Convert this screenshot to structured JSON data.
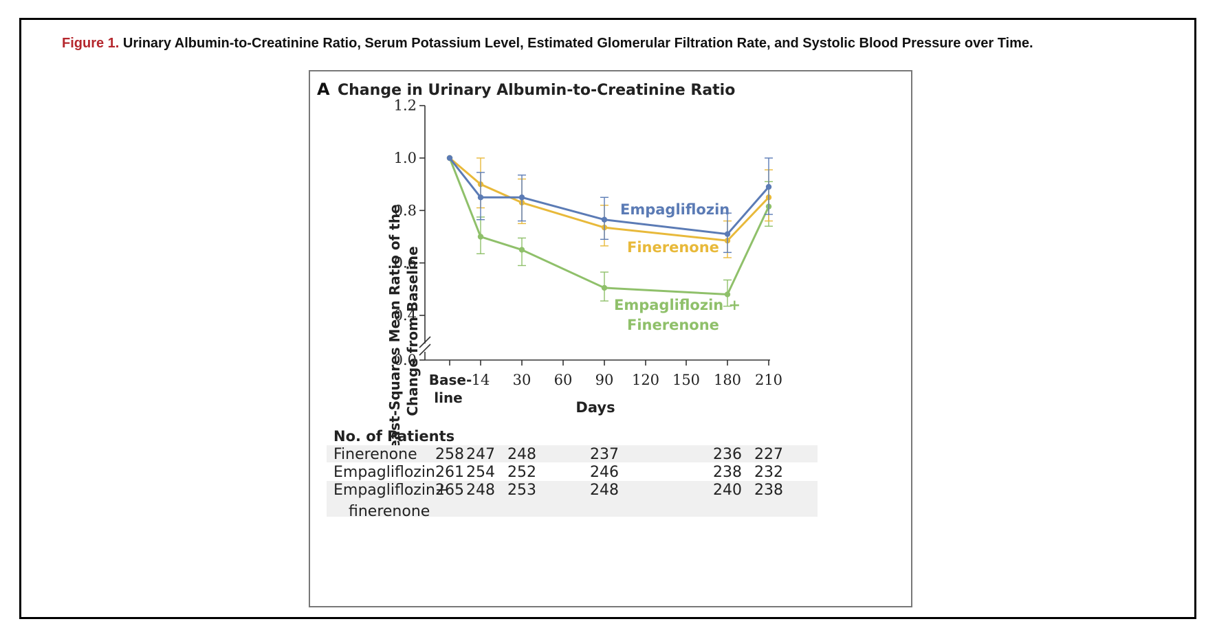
{
  "caption": {
    "label": "Figure 1.",
    "text": "Urinary Albumin-to-Creatinine Ratio, Serum Potassium Level, Estimated Glomerular Filtration Rate, and Systolic Blood Pressure over Time."
  },
  "panel": {
    "letter": "A",
    "title": "Change in Urinary Albumin-to-Creatinine Ratio"
  },
  "chart_data": {
    "type": "line",
    "title": "Change in Urinary Albumin-to-Creatinine Ratio",
    "ylabel_line1": "Least-Squares Mean Ratio of the",
    "ylabel_line2": "Change from Baseline",
    "xlabel": "Days",
    "y_ticks": [
      "0.0",
      "0.4",
      "0.6",
      "0.8",
      "1.0",
      "1.2"
    ],
    "y_tick_values": [
      0.0,
      0.4,
      0.6,
      0.8,
      1.0,
      1.2
    ],
    "y_axis_break": true,
    "x_ticks": [
      {
        "label": "Base-",
        "label2": "line",
        "value": 0,
        "bold": true
      },
      {
        "label": "14",
        "value": 14
      },
      {
        "label": "30",
        "value": 30
      },
      {
        "label": "60",
        "value": 60
      },
      {
        "label": "90",
        "value": 90
      },
      {
        "label": "120",
        "value": 120
      },
      {
        "label": "150",
        "value": 150
      },
      {
        "label": "180",
        "value": 180
      },
      {
        "label": "210",
        "value": 210
      }
    ],
    "x_values": [
      0,
      14,
      30,
      90,
      180,
      210
    ],
    "series": [
      {
        "name": "Empagliflozin",
        "color": "#5b7bb5",
        "values": [
          1.0,
          0.85,
          0.85,
          0.765,
          0.71,
          0.89
        ],
        "ci_low": [
          1.0,
          0.765,
          0.76,
          0.69,
          0.64,
          0.785
        ],
        "ci_high": [
          1.0,
          0.945,
          0.935,
          0.85,
          0.79,
          1.0
        ]
      },
      {
        "name": "Finerenone",
        "color": "#e8b93a",
        "values": [
          1.0,
          0.9,
          0.83,
          0.735,
          0.685,
          0.85
        ],
        "ci_low": [
          1.0,
          0.81,
          0.75,
          0.665,
          0.62,
          0.76
        ],
        "ci_high": [
          1.0,
          1.0,
          0.92,
          0.82,
          0.76,
          0.955
        ]
      },
      {
        "name": "Empagliflozin + Finerenone",
        "label_line1": "Empagliflozin +",
        "label_line2": "Finerenone",
        "color": "#8fc06a",
        "values": [
          1.0,
          0.7,
          0.65,
          0.505,
          0.48,
          0.815
        ],
        "ci_low": [
          1.0,
          0.635,
          0.59,
          0.455,
          0.435,
          0.74
        ],
        "ci_high": [
          1.0,
          0.775,
          0.695,
          0.565,
          0.535,
          0.91
        ]
      }
    ]
  },
  "patients_table": {
    "heading": "No. of Patients",
    "rows": [
      {
        "name": "Finerenone",
        "values": [
          "258",
          "247",
          "248",
          "237",
          "236",
          "227"
        ]
      },
      {
        "name": "Empagliflozin",
        "values": [
          "261",
          "254",
          "252",
          "246",
          "238",
          "232"
        ]
      },
      {
        "name": "Empagliflozin+",
        "name2": "finerenone",
        "values": [
          "265",
          "248",
          "253",
          "248",
          "240",
          "238"
        ]
      }
    ]
  }
}
